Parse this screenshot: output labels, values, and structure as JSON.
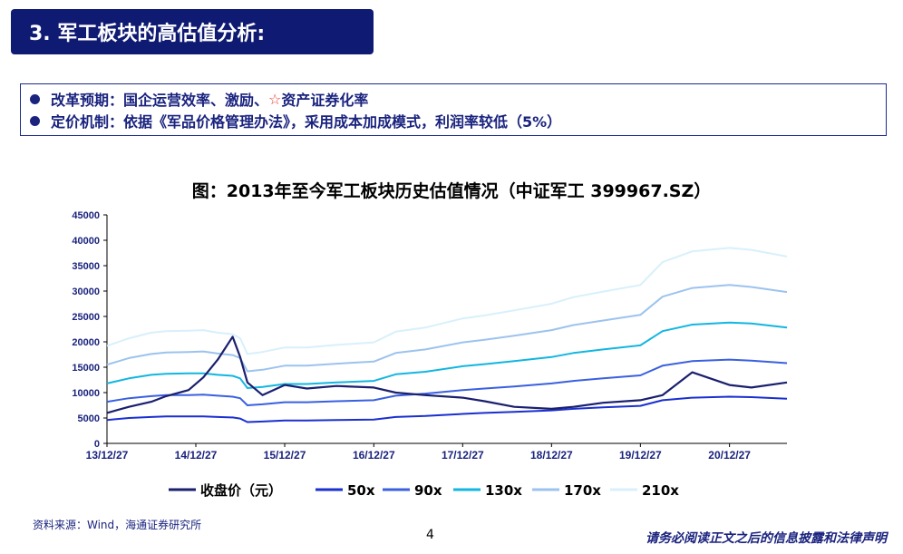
{
  "header": {
    "title": "3. 军工板块的高估值分析:"
  },
  "bullets": {
    "line1_prefix": "改革预期：国企运营效率、激励、",
    "line1_star": "☆",
    "line1_suffix": "资产证券化率",
    "line2": "定价机制：依据《军品价格管理办法》，采用成本加成模式，利润率较低（5%）"
  },
  "footer": {
    "source": "资料来源：Wind，海通证券研究所",
    "page": "4",
    "disclaimer": "请务必阅读正文之后的信息披露和法律声明"
  },
  "chart_data": {
    "type": "line",
    "title": "图：2013年至今军工板块历史估值情况（中证军工 399967.SZ）",
    "x_tick_labels": [
      "13/12/27",
      "14/12/27",
      "15/12/27",
      "16/12/27",
      "17/12/27",
      "18/12/27",
      "19/12/27",
      "20/12/27"
    ],
    "x_range": [
      "2013-12-27",
      "2021-08-20"
    ],
    "ylim": [
      0,
      45000
    ],
    "y_ticks": [
      0,
      5000,
      10000,
      15000,
      20000,
      25000,
      30000,
      35000,
      40000,
      45000
    ],
    "grid": false,
    "legend_position": "bottom",
    "x": [
      "2013-12-27",
      "2014-03-27",
      "2014-06-27",
      "2014-08-27",
      "2014-11-27",
      "2015-01-27",
      "2015-03-27",
      "2015-05-27",
      "2015-06-27",
      "2015-07-27",
      "2015-09-27",
      "2015-12-27",
      "2016-03-27",
      "2016-07-27",
      "2016-12-27",
      "2017-03-27",
      "2017-07-27",
      "2017-12-27",
      "2018-03-27",
      "2018-07-27",
      "2018-12-27",
      "2019-03-27",
      "2019-07-27",
      "2019-12-27",
      "2020-03-27",
      "2020-07-27",
      "2020-12-27",
      "2021-03-27",
      "2021-08-20"
    ],
    "series": [
      {
        "name": "收盘价（元）",
        "color": "#1a1f6e",
        "values": [
          6000,
          7200,
          8200,
          9300,
          10500,
          13000,
          16500,
          21000,
          17000,
          12000,
          9500,
          11500,
          10800,
          11300,
          11000,
          10000,
          9500,
          9000,
          8300,
          7200,
          6800,
          7200,
          8000,
          8500,
          9500,
          14000,
          11500,
          11000,
          12000
        ]
      },
      {
        "name": "50x",
        "color": "#1a2fd0",
        "values": [
          4600,
          5000,
          5200,
          5300,
          5300,
          5300,
          5200,
          5100,
          4900,
          4200,
          4300,
          4500,
          4500,
          4600,
          4700,
          5200,
          5400,
          5800,
          6000,
          6200,
          6500,
          6800,
          7100,
          7400,
          8500,
          9000,
          9200,
          9100,
          8800
        ]
      },
      {
        "name": "90x",
        "color": "#3a60e0",
        "values": [
          8200,
          8900,
          9300,
          9500,
          9500,
          9600,
          9400,
          9200,
          8900,
          7500,
          7700,
          8100,
          8100,
          8300,
          8500,
          9400,
          9800,
          10500,
          10800,
          11200,
          11800,
          12300,
          12800,
          13400,
          15300,
          16200,
          16500,
          16300,
          15800
        ]
      },
      {
        "name": "130x",
        "color": "#12b6e0",
        "values": [
          11800,
          12800,
          13500,
          13700,
          13800,
          13800,
          13500,
          13300,
          12800,
          10900,
          11100,
          11700,
          11700,
          12000,
          12300,
          13600,
          14100,
          15200,
          15600,
          16200,
          17000,
          17800,
          18500,
          19300,
          22100,
          23400,
          23800,
          23600,
          22800
        ]
      },
      {
        "name": "170x",
        "color": "#9cc3ee",
        "values": [
          15500,
          16800,
          17600,
          17900,
          18000,
          18100,
          17700,
          17400,
          16800,
          14200,
          14500,
          15300,
          15300,
          15700,
          16100,
          17800,
          18500,
          19900,
          20400,
          21200,
          22300,
          23300,
          24200,
          25300,
          28900,
          30600,
          31200,
          30800,
          29800
        ]
      },
      {
        "name": "210x",
        "color": "#d8f0fb",
        "values": [
          19200,
          20700,
          21800,
          22100,
          22200,
          22300,
          21800,
          21500,
          20700,
          17600,
          18000,
          18900,
          18900,
          19400,
          19900,
          22000,
          22800,
          24600,
          25200,
          26200,
          27500,
          28800,
          29900,
          31200,
          35700,
          37800,
          38500,
          38100,
          36800
        ]
      }
    ]
  }
}
